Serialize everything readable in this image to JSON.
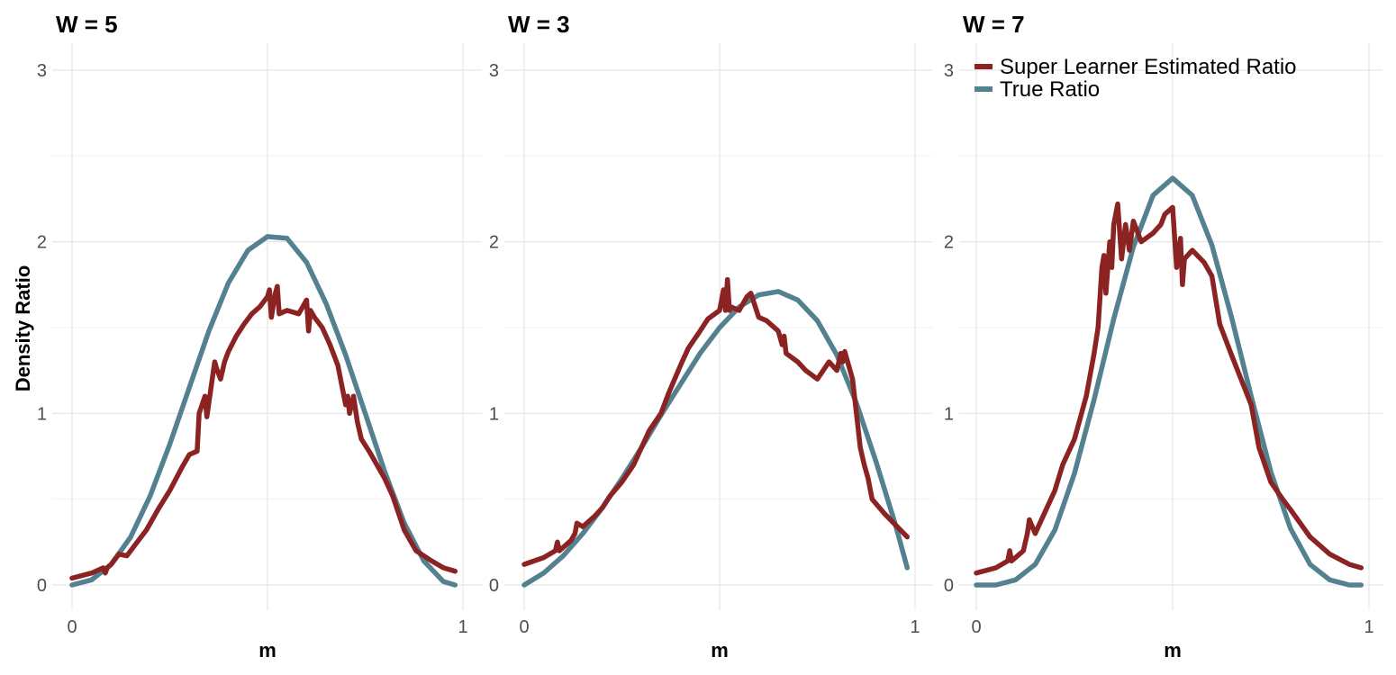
{
  "chart_data": {
    "type": "line",
    "ylabel": "Density Ratio",
    "xlabel": "m",
    "xlim": [
      0,
      1
    ],
    "ylim": [
      0,
      3
    ],
    "x_ticks": [
      "0",
      "1"
    ],
    "y_ticks": [
      "0",
      "1",
      "2",
      "3"
    ],
    "grid": true,
    "legend": {
      "placement": "top-left of third panel",
      "entries": [
        {
          "name": "Super Learner Estimated Ratio",
          "color": "#8B2323"
        },
        {
          "name": "True Ratio",
          "color": "#53818F"
        }
      ]
    },
    "panels": [
      {
        "title": "W = 5",
        "series": [
          {
            "name": "True Ratio",
            "color": "#53818F",
            "x": [
              0.0,
              0.05,
              0.1,
              0.15,
              0.2,
              0.25,
              0.3,
              0.35,
              0.4,
              0.45,
              0.5,
              0.55,
              0.6,
              0.65,
              0.7,
              0.75,
              0.8,
              0.85,
              0.9,
              0.95,
              0.98
            ],
            "y": [
              0.0,
              0.03,
              0.12,
              0.28,
              0.52,
              0.82,
              1.15,
              1.48,
              1.76,
              1.95,
              2.03,
              2.02,
              1.88,
              1.64,
              1.34,
              1.0,
              0.66,
              0.36,
              0.14,
              0.02,
              0.0
            ]
          },
          {
            "name": "Super Learner Estimated Ratio",
            "color": "#8B2323",
            "x": [
              0.0,
              0.05,
              0.08,
              0.085,
              0.09,
              0.1,
              0.12,
              0.14,
              0.17,
              0.19,
              0.22,
              0.25,
              0.28,
              0.3,
              0.32,
              0.325,
              0.34,
              0.345,
              0.36,
              0.365,
              0.37,
              0.38,
              0.39,
              0.4,
              0.42,
              0.44,
              0.46,
              0.48,
              0.5,
              0.505,
              0.51,
              0.52,
              0.525,
              0.53,
              0.55,
              0.58,
              0.6,
              0.605,
              0.61,
              0.62,
              0.64,
              0.66,
              0.68,
              0.7,
              0.705,
              0.71,
              0.72,
              0.73,
              0.74,
              0.76,
              0.78,
              0.8,
              0.82,
              0.85,
              0.88,
              0.92,
              0.95,
              0.98
            ],
            "y": [
              0.04,
              0.07,
              0.1,
              0.07,
              0.1,
              0.12,
              0.18,
              0.17,
              0.26,
              0.32,
              0.44,
              0.55,
              0.68,
              0.76,
              0.78,
              1.0,
              1.1,
              0.98,
              1.22,
              1.3,
              1.26,
              1.2,
              1.3,
              1.36,
              1.45,
              1.52,
              1.58,
              1.62,
              1.68,
              1.72,
              1.56,
              1.7,
              1.74,
              1.58,
              1.6,
              1.58,
              1.66,
              1.48,
              1.6,
              1.56,
              1.5,
              1.4,
              1.28,
              1.05,
              1.1,
              1.0,
              1.1,
              0.95,
              0.85,
              0.78,
              0.7,
              0.62,
              0.52,
              0.32,
              0.2,
              0.14,
              0.1,
              0.08
            ]
          }
        ]
      },
      {
        "title": "W = 3",
        "series": [
          {
            "name": "True Ratio",
            "color": "#53818F",
            "x": [
              0.0,
              0.05,
              0.1,
              0.15,
              0.2,
              0.25,
              0.3,
              0.35,
              0.4,
              0.45,
              0.5,
              0.55,
              0.6,
              0.65,
              0.7,
              0.75,
              0.8,
              0.85,
              0.9,
              0.95,
              0.98
            ],
            "y": [
              0.0,
              0.07,
              0.17,
              0.3,
              0.45,
              0.62,
              0.8,
              0.99,
              1.17,
              1.35,
              1.5,
              1.62,
              1.69,
              1.71,
              1.66,
              1.54,
              1.34,
              1.06,
              0.72,
              0.35,
              0.1
            ]
          },
          {
            "name": "Super Learner Estimated Ratio",
            "color": "#8B2323",
            "x": [
              0.0,
              0.05,
              0.08,
              0.085,
              0.09,
              0.12,
              0.13,
              0.135,
              0.15,
              0.18,
              0.2,
              0.22,
              0.25,
              0.28,
              0.3,
              0.32,
              0.35,
              0.37,
              0.4,
              0.42,
              0.45,
              0.47,
              0.5,
              0.51,
              0.515,
              0.52,
              0.525,
              0.53,
              0.55,
              0.57,
              0.58,
              0.6,
              0.62,
              0.65,
              0.66,
              0.665,
              0.67,
              0.7,
              0.72,
              0.75,
              0.78,
              0.8,
              0.81,
              0.815,
              0.82,
              0.84,
              0.85,
              0.86,
              0.87,
              0.88,
              0.89,
              0.92,
              0.95,
              0.98
            ],
            "y": [
              0.12,
              0.16,
              0.2,
              0.25,
              0.2,
              0.26,
              0.3,
              0.36,
              0.34,
              0.4,
              0.45,
              0.52,
              0.6,
              0.7,
              0.8,
              0.9,
              1.0,
              1.12,
              1.28,
              1.38,
              1.48,
              1.55,
              1.6,
              1.72,
              1.6,
              1.78,
              1.6,
              1.62,
              1.6,
              1.68,
              1.7,
              1.56,
              1.54,
              1.48,
              1.4,
              1.45,
              1.35,
              1.3,
              1.25,
              1.2,
              1.3,
              1.25,
              1.35,
              1.3,
              1.36,
              1.2,
              1.0,
              0.8,
              0.7,
              0.62,
              0.5,
              0.42,
              0.35,
              0.28
            ]
          }
        ]
      },
      {
        "title": "W = 7",
        "series": [
          {
            "name": "True Ratio",
            "color": "#53818F",
            "x": [
              0.0,
              0.05,
              0.1,
              0.15,
              0.2,
              0.25,
              0.3,
              0.35,
              0.4,
              0.45,
              0.5,
              0.55,
              0.6,
              0.65,
              0.7,
              0.75,
              0.8,
              0.85,
              0.9,
              0.95,
              0.98
            ],
            "y": [
              0.0,
              0.0,
              0.03,
              0.12,
              0.32,
              0.65,
              1.08,
              1.55,
              1.97,
              2.27,
              2.37,
              2.27,
              1.98,
              1.56,
              1.1,
              0.66,
              0.33,
              0.12,
              0.03,
              0.0,
              0.0
            ]
          },
          {
            "name": "Super Learner Estimated Ratio",
            "color": "#8B2323",
            "x": [
              0.0,
              0.05,
              0.08,
              0.085,
              0.09,
              0.12,
              0.13,
              0.135,
              0.15,
              0.17,
              0.2,
              0.22,
              0.25,
              0.28,
              0.3,
              0.31,
              0.32,
              0.325,
              0.33,
              0.34,
              0.345,
              0.35,
              0.36,
              0.37,
              0.38,
              0.39,
              0.4,
              0.42,
              0.45,
              0.47,
              0.48,
              0.5,
              0.51,
              0.52,
              0.525,
              0.53,
              0.55,
              0.58,
              0.6,
              0.62,
              0.65,
              0.7,
              0.72,
              0.75,
              0.78,
              0.8,
              0.85,
              0.9,
              0.95,
              0.98
            ],
            "y": [
              0.07,
              0.1,
              0.14,
              0.2,
              0.14,
              0.2,
              0.3,
              0.38,
              0.3,
              0.4,
              0.55,
              0.7,
              0.85,
              1.1,
              1.35,
              1.5,
              1.85,
              1.92,
              1.7,
              2.0,
              1.85,
              2.1,
              2.22,
              1.9,
              2.1,
              1.95,
              2.12,
              2.0,
              2.05,
              2.1,
              2.16,
              2.2,
              1.85,
              2.02,
              1.75,
              1.9,
              1.95,
              1.88,
              1.8,
              1.52,
              1.34,
              1.05,
              0.8,
              0.6,
              0.5,
              0.44,
              0.28,
              0.18,
              0.12,
              0.1
            ]
          }
        ]
      }
    ]
  }
}
